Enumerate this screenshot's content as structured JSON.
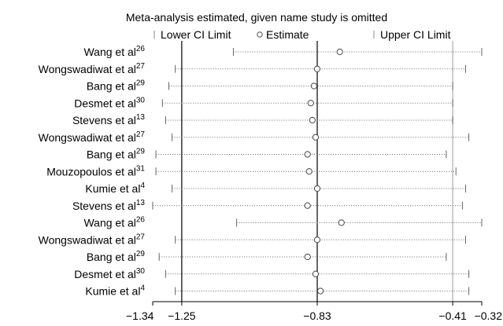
{
  "chart_data": {
    "type": "scatter",
    "title": "Meta-analysis estimated, given name study is omitted",
    "legend": {
      "position": "top",
      "entries": [
        {
          "symbol": "bar",
          "label": "Lower CI Limit"
        },
        {
          "symbol": "circle",
          "label": "Estimate"
        },
        {
          "symbol": "bar",
          "label": "Upper CI Limit"
        }
      ]
    },
    "xlim": [
      -1.34,
      -0.32
    ],
    "x_ticks": [
      {
        "value": -1.34,
        "label": "−1.34"
      },
      {
        "value": -1.25,
        "label": "−1.25"
      },
      {
        "value": -0.83,
        "label": "−0.83"
      },
      {
        "value": -0.41,
        "label": "−0.41"
      },
      {
        "value": -0.32,
        "label": "−0.32"
      }
    ],
    "reference_lines": [
      -1.25,
      -0.83,
      -0.41
    ],
    "studies": [
      {
        "name": "Wang et al",
        "ref": "26",
        "lower": -1.09,
        "estimate": -0.76,
        "upper": -0.32
      },
      {
        "name": "Wongswadiwat et al",
        "ref": "27",
        "lower": -1.27,
        "estimate": -0.83,
        "upper": -0.37
      },
      {
        "name": "Bang et al",
        "ref": "29",
        "lower": -1.29,
        "estimate": -0.84,
        "upper": -0.41
      },
      {
        "name": "Desmet et al",
        "ref": "30",
        "lower": -1.31,
        "estimate": -0.85,
        "upper": -0.41
      },
      {
        "name": "Stevens et al",
        "ref": "13",
        "lower": -1.3,
        "estimate": -0.845,
        "upper": -0.41
      },
      {
        "name": "Wongswadiwat et al",
        "ref": "27",
        "lower": -1.28,
        "estimate": -0.835,
        "upper": -0.36
      },
      {
        "name": "Bang et al",
        "ref": "29",
        "lower": -1.33,
        "estimate": -0.86,
        "upper": -0.43
      },
      {
        "name": "Mouzopoulos et al",
        "ref": "31",
        "lower": -1.33,
        "estimate": -0.855,
        "upper": -0.4
      },
      {
        "name": "Kumie et al",
        "ref": "4",
        "lower": -1.28,
        "estimate": -0.83,
        "upper": -0.37
      },
      {
        "name": "Stevens et al",
        "ref": "13",
        "lower": -1.34,
        "estimate": -0.86,
        "upper": -0.38
      },
      {
        "name": "Wang et al",
        "ref": "26",
        "lower": -1.08,
        "estimate": -0.755,
        "upper": -0.32
      },
      {
        "name": "Wongswadiwat et al",
        "ref": "27",
        "lower": -1.27,
        "estimate": -0.83,
        "upper": -0.37
      },
      {
        "name": "Bang et al",
        "ref": "29",
        "lower": -1.32,
        "estimate": -0.86,
        "upper": -0.43
      },
      {
        "name": "Desmet et al",
        "ref": "30",
        "lower": -1.3,
        "estimate": -0.835,
        "upper": -0.36
      },
      {
        "name": "Kumie et al",
        "ref": "4",
        "lower": -1.27,
        "estimate": -0.82,
        "upper": -0.36
      }
    ]
  }
}
